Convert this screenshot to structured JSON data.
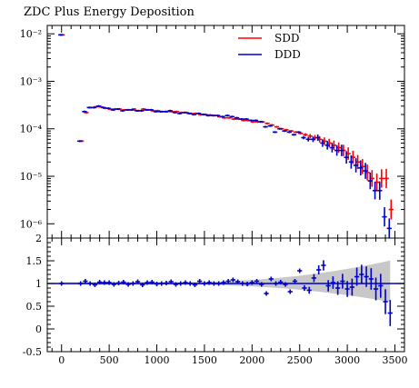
{
  "chart_data": {
    "type": "scatter",
    "title": "ZDC Plus Energy Deposition",
    "colors": {
      "sdd": "#ff0000",
      "ddd": "#0000cc",
      "band": "#c8c8c8",
      "axis": "#000000"
    },
    "legend": {
      "placement": "top-right",
      "entries": [
        "SDD",
        "DDD"
      ]
    },
    "main_panel": {
      "ylog": true,
      "ylim": [
        5e-07,
        0.015
      ],
      "ytick_labels": [
        "10⁻⁶",
        "10⁻⁵",
        "10⁻⁴",
        "10⁻³",
        "10⁻²"
      ],
      "ytick_values": [
        1e-06,
        1e-05,
        0.0001,
        0.001,
        0.01
      ]
    },
    "ratio_panel": {
      "ylim": [
        -0.5,
        2
      ],
      "ytick_labels": [
        "-0.5",
        "0",
        "0.5",
        "1",
        "1.5",
        "2"
      ],
      "ytick_values": [
        -0.5,
        0,
        0.5,
        1,
        1.5,
        2
      ]
    },
    "xlim": [
      -150,
      3600
    ],
    "xtick_labels": [
      "0",
      "500",
      "1000",
      "1500",
      "2000",
      "2500",
      "3000",
      "3500"
    ],
    "xtick_values": [
      0,
      500,
      1000,
      1500,
      2000,
      2500,
      3000,
      3500
    ],
    "bin_width": 50,
    "x": [
      0,
      200,
      250,
      300,
      350,
      400,
      450,
      500,
      550,
      600,
      650,
      700,
      750,
      800,
      850,
      900,
      950,
      1000,
      1050,
      1100,
      1150,
      1200,
      1250,
      1300,
      1350,
      1400,
      1450,
      1500,
      1550,
      1600,
      1650,
      1700,
      1750,
      1800,
      1850,
      1900,
      1950,
      2000,
      2050,
      2100,
      2150,
      2200,
      2250,
      2300,
      2350,
      2400,
      2450,
      2500,
      2550,
      2600,
      2650,
      2700,
      2750,
      2800,
      2850,
      2900,
      2950,
      3000,
      3050,
      3100,
      3150,
      3200,
      3250,
      3300,
      3350,
      3400,
      3450
    ],
    "series": [
      {
        "name": "SDD",
        "values": [
          0.0095,
          5.5e-05,
          0.00022,
          0.00028,
          0.00029,
          0.00029,
          0.00027,
          0.00026,
          0.00026,
          0.00026,
          0.00025,
          0.00025,
          0.00026,
          0.00024,
          0.00026,
          0.00025,
          0.00024,
          0.00024,
          0.00023,
          0.00023,
          0.00023,
          0.00023,
          0.00022,
          0.00022,
          0.00021,
          0.00021,
          0.0002,
          0.0002,
          0.000195,
          0.00019,
          0.00018,
          0.00017,
          0.00017,
          0.00016,
          0.00016,
          0.00015,
          0.00015,
          0.00014,
          0.00014,
          0.00014,
          0.00013,
          0.00012,
          0.00011,
          0.0001,
          9.5e-05,
          9e-05,
          8.5e-05,
          8e-05,
          7.5e-05,
          7e-05,
          6.5e-05,
          6e-05,
          5.5e-05,
          5e-05,
          4.5e-05,
          4e-05,
          3.5e-05,
          3e-05,
          2.5e-05,
          2e-05,
          1.6e-05,
          1.2e-05,
          9e-06,
          7.5e-06,
          9e-06,
          9e-06,
          2e-06
        ]
      },
      {
        "name": "DDD",
        "values": [
          0.0095,
          5.5e-05,
          0.00023,
          0.00028,
          0.00028,
          0.0003,
          0.00028,
          0.00027,
          0.00025,
          0.00026,
          0.00024,
          0.00025,
          0.00025,
          0.00024,
          0.00024,
          0.00025,
          0.00025,
          0.00023,
          0.00023,
          0.00023,
          0.00024,
          0.00022,
          0.00021,
          0.00022,
          0.00021,
          0.0002,
          0.00021,
          0.0002,
          0.00019,
          0.00019,
          0.00019,
          0.00018,
          0.00019,
          0.00018,
          0.00017,
          0.00016,
          0.00016,
          0.00015,
          0.00015,
          0.00014,
          0.00011,
          0.000115,
          8.5e-05,
          0.0001,
          9e-05,
          8.5e-05,
          7.5e-05,
          8.5e-05,
          6.5e-05,
          6e-05,
          6e-05,
          6.5e-05,
          5e-05,
          4.5e-05,
          4e-05,
          3.5e-05,
          3.5e-05,
          2.5e-05,
          2e-05,
          1.7e-05,
          1.5e-05,
          1.3e-05,
          8e-06,
          5e-06,
          5e-06,
          1.4e-06,
          8e-07
        ]
      }
    ],
    "ratio": [
      1.0,
      1.0,
      1.05,
      1.0,
      0.97,
      1.03,
      1.02,
      1.02,
      0.98,
      1.01,
      1.03,
      0.98,
      1.0,
      1.04,
      0.97,
      1.02,
      1.03,
      0.99,
      1.0,
      1.01,
      1.04,
      0.98,
      1.0,
      1.02,
      1.0,
      0.97,
      1.05,
      1.0,
      1.02,
      1.0,
      1.0,
      1.02,
      1.05,
      1.08,
      1.04,
      1.0,
      0.99,
      1.02,
      1.05,
      0.98,
      0.78,
      1.1,
      1.0,
      1.03,
      0.98,
      0.82,
      1.05,
      1.28,
      0.9,
      0.85,
      1.12,
      1.3,
      1.4,
      0.95,
      1.02,
      0.9,
      1.05,
      0.88,
      0.92,
      1.15,
      1.2,
      1.15,
      1.1,
      0.88,
      0.95,
      0.6,
      0.35
    ]
  }
}
